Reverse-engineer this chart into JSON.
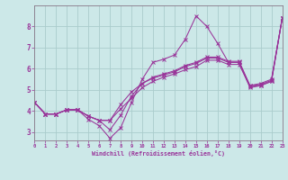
{
  "background_color": "#cce8e8",
  "grid_color": "#aacccc",
  "line_color": "#993399",
  "xlabel": "Windchill (Refroidissement éolien,°C)",
  "xlim": [
    0,
    23
  ],
  "ylim": [
    2.6,
    9.0
  ],
  "xticks": [
    0,
    1,
    2,
    3,
    4,
    5,
    6,
    7,
    8,
    9,
    10,
    11,
    12,
    13,
    14,
    15,
    16,
    17,
    18,
    19,
    20,
    21,
    22,
    23
  ],
  "yticks": [
    3,
    4,
    5,
    6,
    7,
    8
  ],
  "line1_x": [
    0,
    1,
    2,
    3,
    4,
    5,
    6,
    7,
    8,
    9,
    10,
    11,
    12,
    13,
    14,
    15,
    16,
    17,
    18,
    19,
    20,
    21,
    22,
    23
  ],
  "line1_y": [
    4.4,
    3.85,
    3.85,
    4.05,
    4.05,
    3.6,
    3.3,
    2.7,
    3.2,
    4.4,
    5.5,
    6.3,
    6.45,
    6.65,
    7.4,
    8.5,
    8.0,
    7.2,
    6.3,
    6.3,
    5.1,
    5.2,
    5.4,
    8.4
  ],
  "line2_x": [
    0,
    1,
    2,
    3,
    4,
    5,
    6,
    7,
    8,
    9,
    10,
    11,
    12,
    13,
    14,
    15,
    16,
    17,
    18,
    19,
    20,
    21,
    22,
    23
  ],
  "line2_y": [
    4.4,
    3.85,
    3.85,
    4.05,
    4.05,
    3.75,
    3.55,
    3.1,
    3.8,
    4.7,
    5.3,
    5.6,
    5.75,
    5.9,
    6.15,
    6.3,
    6.55,
    6.55,
    6.35,
    6.35,
    5.2,
    5.3,
    5.5,
    8.4
  ],
  "line3_x": [
    0,
    1,
    2,
    3,
    4,
    5,
    6,
    7,
    8,
    9,
    10,
    11,
    12,
    13,
    14,
    15,
    16,
    17,
    18,
    19,
    20,
    21,
    22,
    23
  ],
  "line3_y": [
    4.4,
    3.85,
    3.85,
    4.05,
    4.05,
    3.75,
    3.55,
    3.55,
    4.3,
    4.9,
    5.3,
    5.55,
    5.7,
    5.85,
    6.1,
    6.25,
    6.5,
    6.5,
    6.3,
    6.3,
    5.2,
    5.25,
    5.45,
    8.4
  ],
  "line4_x": [
    0,
    1,
    2,
    3,
    4,
    5,
    6,
    7,
    8,
    9,
    10,
    11,
    12,
    13,
    14,
    15,
    16,
    17,
    18,
    19,
    20,
    21,
    22,
    23
  ],
  "line4_y": [
    4.4,
    3.85,
    3.85,
    4.05,
    4.05,
    3.75,
    3.55,
    3.55,
    4.1,
    4.6,
    5.1,
    5.4,
    5.6,
    5.75,
    5.95,
    6.1,
    6.4,
    6.4,
    6.2,
    6.2,
    5.15,
    5.2,
    5.4,
    8.4
  ]
}
